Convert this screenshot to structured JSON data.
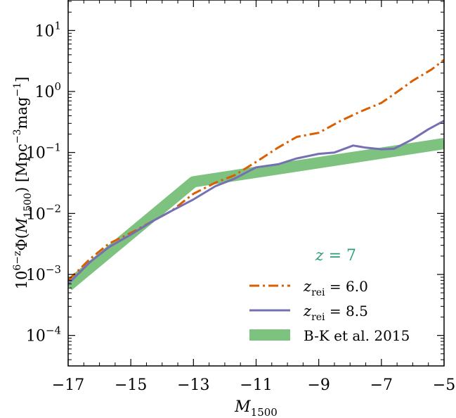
{
  "chart_data": {
    "type": "line",
    "xlabel": "M",
    "xlabel_sub": "1500",
    "ylabel": "10^{6-z} Φ(M_1500) [Mpc^-3 mag^-1]",
    "ylabel_parts": {
      "pre": "10",
      "pre_sup": "6−z",
      "phi": "Φ(",
      "m": "M",
      "m_sub": "1500",
      "close": ") [Mpc",
      "u1_sup": "−3",
      "mag": "mag",
      "u2_sup": "−1",
      "end": "]"
    },
    "xlim": [
      -17,
      -5
    ],
    "ylim_log10": [
      -4.5,
      1.5
    ],
    "yscale": "log",
    "grid": false,
    "legend_position": "lower-right",
    "x_ticks": [
      {
        "value": -17,
        "label": "−17"
      },
      {
        "value": -15,
        "label": "−15"
      },
      {
        "value": -13,
        "label": "−13"
      },
      {
        "value": -11,
        "label": "−11"
      },
      {
        "value": -9,
        "label": "−9"
      },
      {
        "value": -7,
        "label": "−7"
      },
      {
        "value": -5,
        "label": "−5"
      }
    ],
    "y_ticks": [
      {
        "exp": 1,
        "base": "10",
        "sup": "1"
      },
      {
        "exp": 0,
        "base": "10",
        "sup": "0"
      },
      {
        "exp": -1,
        "base": "10",
        "sup": "−1"
      },
      {
        "exp": -2,
        "base": "10",
        "sup": "−2"
      },
      {
        "exp": -3,
        "base": "10",
        "sup": "−3"
      },
      {
        "exp": -4,
        "base": "10",
        "sup": "−4"
      }
    ],
    "annotation": {
      "lhs": "z",
      "text": "= 7",
      "color": "#2a9d7a"
    },
    "series": [
      {
        "name": "z_rei = 6.0",
        "legend_var": "z",
        "legend_sub": "rei",
        "legend_value": "= 6.0",
        "style": "dashdot",
        "color": "#d95f02",
        "x": [
          -17,
          -16.3,
          -15.7,
          -15,
          -14.3,
          -13.7,
          -13,
          -12.3,
          -11.7,
          -11,
          -10.3,
          -9.7,
          -9,
          -8.3,
          -7.7,
          -7,
          -6.7,
          -6,
          -5.4,
          -5
        ],
        "y": [
          0.0008,
          0.0018,
          0.0032,
          0.0048,
          0.0075,
          0.011,
          0.021,
          0.032,
          0.042,
          0.07,
          0.12,
          0.18,
          0.21,
          0.33,
          0.46,
          0.65,
          0.83,
          1.5,
          2.3,
          3.3
        ]
      },
      {
        "name": "z_rei = 8.5",
        "legend_var": "z",
        "legend_sub": "rei",
        "legend_value": "= 8.5",
        "style": "solid",
        "color": "#7570b3",
        "x": [
          -17,
          -16.3,
          -15.7,
          -15,
          -14.3,
          -13.7,
          -13,
          -12.3,
          -11.7,
          -11,
          -10.3,
          -9.7,
          -9,
          -8.5,
          -7.9,
          -7.5,
          -7,
          -6.6,
          -6,
          -5.5,
          -5
        ],
        "y": [
          0.0007,
          0.0016,
          0.0028,
          0.0045,
          0.0075,
          0.011,
          0.017,
          0.028,
          0.037,
          0.057,
          0.064,
          0.08,
          0.095,
          0.1,
          0.13,
          0.12,
          0.113,
          0.115,
          0.165,
          0.24,
          0.33
        ]
      },
      {
        "name": "B-K et al. 2015",
        "style": "band",
        "color": "#7dc27e",
        "x": [
          -17,
          -13,
          -5
        ],
        "y": [
          0.00065,
          0.033,
          0.14
        ]
      }
    ]
  }
}
